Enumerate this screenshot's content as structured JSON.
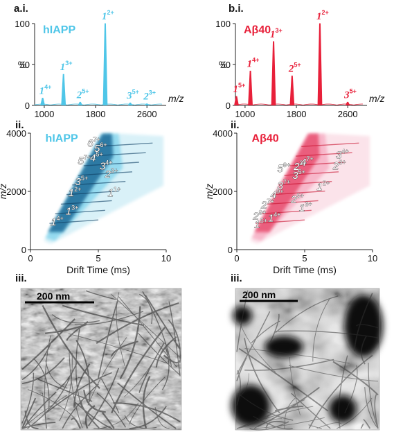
{
  "labels": {
    "a_i": "a.i.",
    "a_ii": "ii.",
    "a_iii": "iii.",
    "b_i": "b.i.",
    "b_ii": "ii.",
    "b_iii": "iii."
  },
  "colors": {
    "hiapp": "#4fc6e8",
    "hiapp_dark": "#1f5c86",
    "abeta": "#e8203a",
    "abeta_light": "#f7a6bd"
  },
  "chart_data": [
    {
      "id": "a_i",
      "type": "line",
      "protein": "hIAPP",
      "xlabel": "m/z",
      "ylabel": "%",
      "xlim": [
        850,
        2900
      ],
      "ylim": [
        0,
        100
      ],
      "xticks": [
        1000,
        1800,
        2600
      ],
      "yticks": [
        0,
        50,
        100
      ],
      "peaks": [
        {
          "mz": 975,
          "y": 9,
          "charge": "4+",
          "base": "1"
        },
        {
          "mz": 1300,
          "y": 38,
          "charge": "3+",
          "base": "1"
        },
        {
          "mz": 1560,
          "y": 4,
          "charge": "5+",
          "base": "2"
        },
        {
          "mz": 1950,
          "y": 100,
          "charge": "2+",
          "base": "1"
        },
        {
          "mz": 2340,
          "y": 3,
          "charge": "5+",
          "base": "3"
        },
        {
          "mz": 2600,
          "y": 2,
          "charge": "3+",
          "base": "2"
        }
      ]
    },
    {
      "id": "b_i",
      "type": "line",
      "protein": "Aβ40",
      "xlabel": "m/z",
      "ylabel": "%",
      "xlim": [
        850,
        2900
      ],
      "ylim": [
        0,
        100
      ],
      "xticks": [
        1000,
        1800,
        2600
      ],
      "yticks": [
        0,
        50,
        100
      ],
      "peaks": [
        {
          "mz": 866,
          "y": 11,
          "charge": "5+",
          "base": "1"
        },
        {
          "mz": 1083,
          "y": 42,
          "charge": "4+",
          "base": "1"
        },
        {
          "mz": 1444,
          "y": 78,
          "charge": "3+",
          "base": "1"
        },
        {
          "mz": 1733,
          "y": 36,
          "charge": "5+",
          "base": "2"
        },
        {
          "mz": 2166,
          "y": 100,
          "charge": "2+",
          "base": "1"
        },
        {
          "mz": 2599,
          "y": 4,
          "charge": "5+",
          "base": "3"
        }
      ]
    },
    {
      "id": "a_ii",
      "type": "heatmap",
      "protein": "hIAPP",
      "xlabel": "Drift Time (ms)",
      "ylabel": "m/z",
      "xlim": [
        0,
        10
      ],
      "ylim": [
        0,
        4000
      ],
      "xticks": [
        0,
        5,
        10
      ],
      "yticks": [
        0,
        2000,
        4000
      ],
      "annotations": [
        {
          "base": "1",
          "charge": "4+",
          "t": 1.8,
          "mz": 950
        },
        {
          "base": "1",
          "charge": "3+",
          "t": 2.9,
          "mz": 1320
        },
        {
          "base": "1",
          "charge": "2+",
          "t": 3.1,
          "mz": 1950
        },
        {
          "base": "3",
          "charge": "5+",
          "t": 3.6,
          "mz": 2330
        },
        {
          "base": "5",
          "charge": "7+",
          "t": 3.8,
          "mz": 3050
        },
        {
          "base": "4",
          "charge": "5+",
          "t": 4.7,
          "mz": 3150
        },
        {
          "base": "6",
          "charge": "7+",
          "t": 4.5,
          "mz": 3660
        },
        {
          "base": "5",
          "charge": "6+",
          "t": 5.0,
          "mz": 3480
        },
        {
          "base": "3",
          "charge": "4+",
          "t": 5.4,
          "mz": 2870
        },
        {
          "base": "2",
          "charge": "3+",
          "t": 5.8,
          "mz": 2600
        },
        {
          "base": "1",
          "charge": "1+",
          "t": 6.0,
          "mz": 1950
        }
      ]
    },
    {
      "id": "b_ii",
      "type": "heatmap",
      "protein": "Aβ40",
      "xlabel": "Drift Time (ms)",
      "ylabel": "m/z",
      "xlim": [
        0,
        10
      ],
      "ylim": [
        0,
        4000
      ],
      "xticks": [
        0,
        5,
        10
      ],
      "yticks": [
        0,
        2000,
        4000
      ],
      "annotations": [
        {
          "base": "1",
          "charge": "5+",
          "t": 1.6,
          "mz": 870
        },
        {
          "base": "2",
          "charge": "9+",
          "t": 1.5,
          "mz": 1150
        },
        {
          "base": "1",
          "charge": "4+",
          "t": 2.6,
          "mz": 1080
        },
        {
          "base": "2",
          "charge": "7+",
          "t": 2.1,
          "mz": 1540
        },
        {
          "base": "4",
          "charge": "9+",
          "t": 2.8,
          "mz": 1880
        },
        {
          "base": "3",
          "charge": "7+",
          "t": 3.3,
          "mz": 2200
        },
        {
          "base": "5",
          "charge": "9+",
          "t": 3.3,
          "mz": 2780
        },
        {
          "base": "2",
          "charge": "5+",
          "t": 4.3,
          "mz": 1730
        },
        {
          "base": "1",
          "charge": "3+",
          "t": 4.9,
          "mz": 1440
        },
        {
          "base": "2",
          "charge": "3+",
          "t": 4.5,
          "mz": 2860
        },
        {
          "base": "3",
          "charge": "5+",
          "t": 4.4,
          "mz": 2550
        },
        {
          "base": "4",
          "charge": "7+",
          "t": 5.0,
          "mz": 3000
        },
        {
          "base": "1",
          "charge": "2+",
          "t": 6.2,
          "mz": 2170
        },
        {
          "base": "3",
          "charge": "4+",
          "t": 7.6,
          "mz": 3250
        },
        {
          "base": "2",
          "charge": "3+",
          "t": 7.4,
          "mz": 2880
        }
      ]
    }
  ],
  "micrographs": [
    {
      "id": "a_iii",
      "scale_label": "200 nm",
      "description": "hIAPP fibrils"
    },
    {
      "id": "b_iii",
      "scale_label": "200 nm",
      "description": "Abeta40 fibrils"
    }
  ]
}
